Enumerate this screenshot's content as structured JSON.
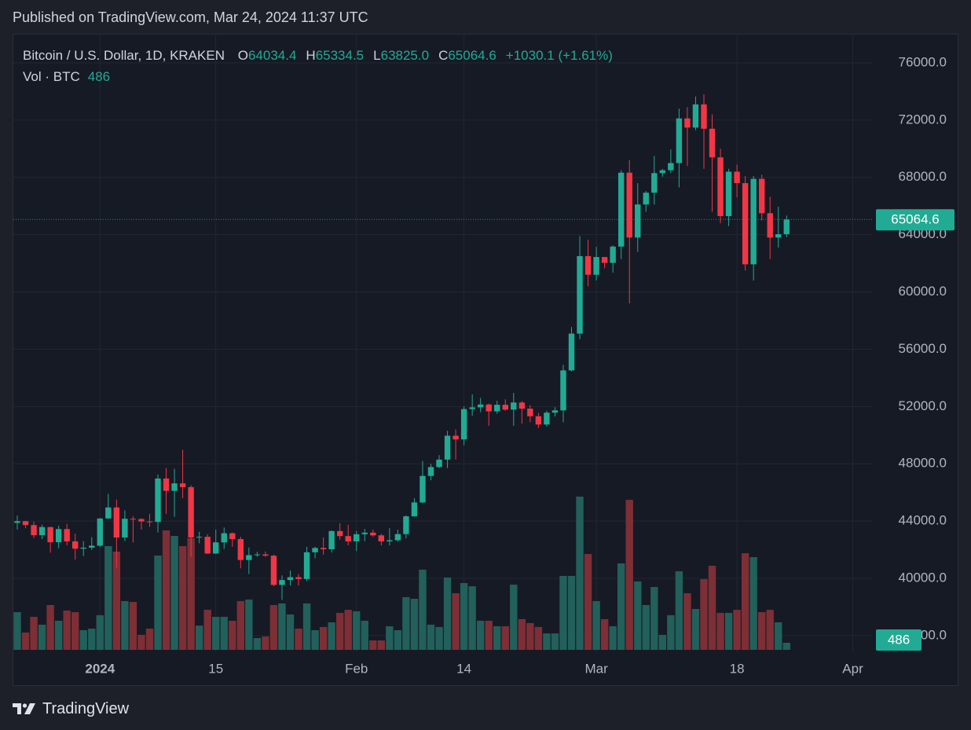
{
  "header": "Published on TradingView.com, Mar 24, 2024 11:37 UTC",
  "footer": "TradingView",
  "chart_data": {
    "type": "candlestick",
    "legend": {
      "symbol": "Bitcoin / U.S. Dollar, 1D, KRAKEN",
      "fields": [
        {
          "key": "O",
          "value": "64034.4"
        },
        {
          "key": "H",
          "value": "65334.5"
        },
        {
          "key": "L",
          "value": "63825.0"
        },
        {
          "key": "C",
          "value": "65064.6"
        }
      ],
      "change": "+1030.1 (+1.61%)",
      "volume_title": "Vol · BTC"
    },
    "up_color": "#22ab94",
    "down_color": "#f23645",
    "volume_up_color": "#22605b",
    "volume_down_color": "#7d2f35",
    "grid": true,
    "ylim": [
      34840,
      78030
    ],
    "yticks": [
      {
        "value": 36000,
        "label": "36000.0"
      },
      {
        "value": 40000,
        "label": "40000.0"
      },
      {
        "value": 44000,
        "label": "44000.0"
      },
      {
        "value": 48000,
        "label": "48000.0"
      },
      {
        "value": 52000,
        "label": "52000.0"
      },
      {
        "value": 56000,
        "label": "56000.0"
      },
      {
        "value": 60000,
        "label": "60000.0"
      },
      {
        "value": 64000,
        "label": "64000.0"
      },
      {
        "value": 68000,
        "label": "68000.0"
      },
      {
        "value": 72000,
        "label": "72000.0"
      },
      {
        "value": 76000,
        "label": "76000.0"
      }
    ],
    "xticks": [
      {
        "value": "2024-01-01",
        "label": "2024"
      },
      {
        "value": "2024-01-15",
        "label": "15"
      },
      {
        "value": "2024-02-01",
        "label": "Feb"
      },
      {
        "value": "2024-02-14",
        "label": "14"
      },
      {
        "value": "2024-03-01",
        "label": "Mar"
      },
      {
        "value": "2024-03-18",
        "label": "18"
      },
      {
        "value": "2024-04-01",
        "label": "Apr"
      }
    ],
    "x": [
      "2023-12-22",
      "2023-12-23",
      "2023-12-24",
      "2023-12-25",
      "2023-12-26",
      "2023-12-27",
      "2023-12-28",
      "2023-12-29",
      "2023-12-30",
      "2023-12-31",
      "2024-01-01",
      "2024-01-02",
      "2024-01-03",
      "2024-01-04",
      "2024-01-05",
      "2024-01-06",
      "2024-01-07",
      "2024-01-08",
      "2024-01-09",
      "2024-01-10",
      "2024-01-11",
      "2024-01-12",
      "2024-01-13",
      "2024-01-14",
      "2024-01-15",
      "2024-01-16",
      "2024-01-17",
      "2024-01-18",
      "2024-01-19",
      "2024-01-20",
      "2024-01-21",
      "2024-01-22",
      "2024-01-23",
      "2024-01-24",
      "2024-01-25",
      "2024-01-26",
      "2024-01-27",
      "2024-01-28",
      "2024-01-29",
      "2024-01-30",
      "2024-01-31",
      "2024-02-01",
      "2024-02-02",
      "2024-02-03",
      "2024-02-04",
      "2024-02-05",
      "2024-02-06",
      "2024-02-07",
      "2024-02-08",
      "2024-02-09",
      "2024-02-10",
      "2024-02-11",
      "2024-02-12",
      "2024-02-13",
      "2024-02-14",
      "2024-02-15",
      "2024-02-16",
      "2024-02-17",
      "2024-02-18",
      "2024-02-19",
      "2024-02-20",
      "2024-02-21",
      "2024-02-22",
      "2024-02-23",
      "2024-02-24",
      "2024-02-25",
      "2024-02-26",
      "2024-02-27",
      "2024-02-28",
      "2024-02-29",
      "2024-03-01",
      "2024-03-02",
      "2024-03-03",
      "2024-03-04",
      "2024-03-05",
      "2024-03-06",
      "2024-03-07",
      "2024-03-08",
      "2024-03-09",
      "2024-03-10",
      "2024-03-11",
      "2024-03-12",
      "2024-03-13",
      "2024-03-14",
      "2024-03-15",
      "2024-03-16",
      "2024-03-17",
      "2024-03-18",
      "2024-03-19",
      "2024-03-20",
      "2024-03-21",
      "2024-03-22",
      "2024-03-23",
      "2024-03-24"
    ],
    "open": [
      43870,
      43990,
      43720,
      43010,
      43580,
      42520,
      43440,
      42580,
      42070,
      42140,
      42280,
      44180,
      44950,
      42850,
      44160,
      44140,
      43970,
      43940,
      46970,
      46110,
      46630,
      46370,
      42850,
      42900,
      41730,
      42510,
      43150,
      42740,
      41280,
      41620,
      41670,
      41580,
      39540,
      39880,
      40080,
      39950,
      41820,
      42120,
      42030,
      43300,
      42950,
      42580,
      43080,
      43190,
      43000,
      42580,
      42660,
      43090,
      44330,
      45300,
      47150,
      47770,
      48290,
      49960,
      49700,
      51820,
      51940,
      52140,
      51660,
      52120,
      51780,
      52280,
      51850,
      51320,
      50740,
      51570,
      51730,
      54520,
      57090,
      62500,
      61200,
      62440,
      62030,
      63170,
      68330,
      63800,
      66110,
      66930,
      68300,
      68500,
      69000,
      72120,
      71480,
      73100,
      71400,
      69400,
      65300,
      68400,
      67600,
      61930,
      67900,
      65500,
      63800,
      64034.4
    ],
    "high": [
      44380,
      44020,
      43950,
      43750,
      43600,
      43680,
      43800,
      43120,
      42600,
      42880,
      44200,
      45900,
      45500,
      44750,
      44350,
      44200,
      44500,
      47250,
      47700,
      47650,
      48970,
      46500,
      43250,
      43080,
      43400,
      43550,
      43200,
      42900,
      42150,
      41850,
      41880,
      41650,
      40200,
      40550,
      40300,
      42200,
      42200,
      42850,
      43350,
      43850,
      43750,
      43300,
      43450,
      43400,
      43100,
      43500,
      43400,
      44400,
      45600,
      48200,
      48000,
      48600,
      50300,
      50400,
      52000,
      52850,
      52600,
      52200,
      52400,
      52500,
      52950,
      52380,
      52100,
      51550,
      51700,
      51950,
      54900,
      57550,
      63900,
      63650,
      63150,
      62450,
      63250,
      68500,
      69200,
      67600,
      67050,
      69500,
      68600,
      69950,
      72800,
      72900,
      73650,
      73800,
      72400,
      70000,
      68600,
      68900,
      68100,
      68100,
      68200,
      66650,
      65950,
      65334.5
    ],
    "low": [
      43410,
      43500,
      42820,
      42750,
      41800,
      42100,
      42300,
      41300,
      41550,
      41980,
      42180,
      44150,
      40750,
      42600,
      42500,
      43400,
      43600,
      43200,
      44500,
      44300,
      45600,
      41500,
      42450,
      41700,
      41700,
      42050,
      42200,
      40700,
      40300,
      41500,
      41500,
      39450,
      38500,
      39500,
      39500,
      39800,
      41400,
      41650,
      41800,
      42700,
      42300,
      41900,
      42600,
      42900,
      42300,
      42300,
      42550,
      42800,
      44300,
      45250,
      46850,
      47700,
      47700,
      48300,
      49300,
      51350,
      51600,
      50650,
      51500,
      51700,
      50650,
      50800,
      50900,
      50500,
      50600,
      51300,
      50900,
      54450,
      56700,
      60400,
      60800,
      61650,
      61350,
      62300,
      59200,
      62800,
      65600,
      66100,
      68050,
      68300,
      67300,
      68800,
      71300,
      68600,
      65600,
      64800,
      64600,
      66600,
      61500,
      60800,
      65000,
      62300,
      63100,
      63825
    ],
    "close": [
      43990,
      43720,
      43010,
      43580,
      42520,
      43440,
      42580,
      42070,
      42140,
      42280,
      44180,
      44950,
      42850,
      44160,
      44140,
      43970,
      43940,
      46970,
      46110,
      46630,
      46370,
      42850,
      42900,
      41730,
      42510,
      43150,
      42740,
      41280,
      41620,
      41670,
      41580,
      39540,
      39880,
      40080,
      39950,
      41820,
      42120,
      42030,
      43300,
      42950,
      42580,
      43080,
      43190,
      43000,
      42580,
      42660,
      43090,
      44330,
      45300,
      47150,
      47770,
      48290,
      49960,
      49700,
      51820,
      51940,
      52140,
      51660,
      52120,
      51780,
      52280,
      51850,
      51320,
      50740,
      51570,
      51730,
      54520,
      57090,
      62500,
      61200,
      62440,
      62030,
      63170,
      68330,
      63800,
      66110,
      66930,
      68300,
      68500,
      69000,
      72120,
      71480,
      73100,
      71400,
      69400,
      65300,
      68400,
      67600,
      61930,
      67900,
      65500,
      63800,
      64034.4,
      65064.6
    ],
    "volume": [
      2590,
      1190,
      2270,
      1730,
      3080,
      2000,
      2700,
      2590,
      1350,
      1460,
      2380,
      7130,
      6750,
      3350,
      3290,
      1030,
      1460,
      6480,
      8210,
      7830,
      7130,
      7670,
      1670,
      2750,
      2270,
      2270,
      2000,
      3350,
      3460,
      810,
      920,
      3080,
      3190,
      2430,
      1460,
      3190,
      1350,
      1570,
      1890,
      2540,
      2750,
      2650,
      2000,
      650,
      650,
      1620,
      1350,
      3620,
      3510,
      5510,
      1730,
      1570,
      4970,
      3890,
      4590,
      4370,
      2000,
      2000,
      1620,
      1620,
      4480,
      2110,
      1840,
      1570,
      1130,
      1130,
      5080,
      5080,
      10530,
      6590,
      3350,
      2110,
      1620,
      5940,
      10310,
      4700,
      3080,
      4320,
      1030,
      2380,
      5400,
      3890,
      2810,
      4860,
      5780,
      2540,
      2540,
      2750,
      6640,
      6370,
      2590,
      2750,
      1890,
      486
    ]
  }
}
